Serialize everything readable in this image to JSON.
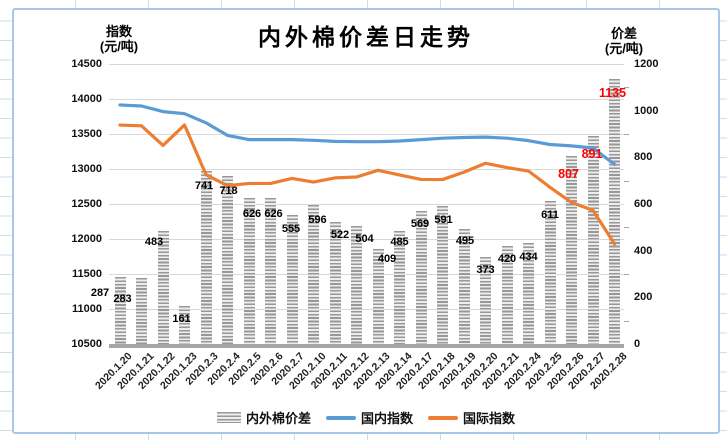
{
  "chart_data": {
    "type": "bar+line combo",
    "title": "内外棉价差日走势",
    "left_axis": {
      "title_line1": "指数",
      "title_line2": "(元/吨)",
      "min": 10500,
      "max": 14500,
      "step": 500,
      "ticks": [
        14500,
        14000,
        13500,
        13000,
        12500,
        12000,
        11500,
        11000,
        10500
      ]
    },
    "right_axis": {
      "title_line1": "价差",
      "title_line2": "(元/吨)",
      "min": 0,
      "max": 1200,
      "step": 200,
      "ticks": [
        1200,
        1000,
        800,
        600,
        400,
        200,
        0
      ]
    },
    "categories": [
      "2020.1.20",
      "2020.1.21",
      "2020.1.22",
      "2020.1.23",
      "2020.2.3",
      "2020.2.4",
      "2020.2.5",
      "2020.2.6",
      "2020.2.7",
      "2020.2.10",
      "2020.2.11",
      "2020.2.12",
      "2020.2.13",
      "2020.2.14",
      "2020.2.17",
      "2020.2.18",
      "2020.2.19",
      "2020.2.20",
      "2020.2.21",
      "2020.2.24",
      "2020.2.25",
      "2020.2.26",
      "2020.2.27",
      "2020.2.28"
    ],
    "series": [
      {
        "name": "内外棉价差",
        "type": "bar",
        "axis": "right",
        "values": [
          287,
          283,
          483,
          161,
          741,
          718,
          626,
          626,
          555,
          596,
          522,
          504,
          409,
          485,
          569,
          591,
          495,
          373,
          420,
          434,
          611,
          807,
          891,
          1135
        ]
      },
      {
        "name": "国内指数",
        "type": "line",
        "axis": "left",
        "color": "#5b9bd5",
        "values": [
          13915,
          13900,
          13820,
          13790,
          13660,
          13480,
          13420,
          13420,
          13420,
          13410,
          13395,
          13390,
          13390,
          13400,
          13420,
          13440,
          13450,
          13455,
          13440,
          13405,
          13350,
          13330,
          13300,
          13065
        ]
      },
      {
        "name": "国际指数",
        "type": "line",
        "axis": "left",
        "color": "#ed7d31",
        "values": [
          13628,
          13617,
          13337,
          13629,
          12919,
          12762,
          12794,
          12794,
          12865,
          12814,
          12873,
          12886,
          12981,
          12915,
          12851,
          12849,
          12955,
          13082,
          13020,
          12971,
          12739,
          12523,
          12409,
          11930
        ]
      }
    ],
    "bar_label_color": "#000000",
    "bar_label_highlight_color": "#ff0000",
    "highlight_label_indices": [
      21,
      22,
      23
    ],
    "grid": "horizontal",
    "legend_position": "bottom"
  },
  "legend": {
    "items": [
      {
        "label": "内外棉价差",
        "swatch": "bar-pattern-gray"
      },
      {
        "label": "国内指数",
        "swatch": "line",
        "color": "#5b9bd5"
      },
      {
        "label": "国际指数",
        "swatch": "line",
        "color": "#ed7d31"
      }
    ]
  }
}
